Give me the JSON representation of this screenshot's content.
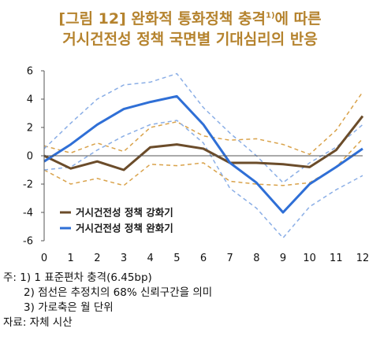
{
  "title": {
    "line1_main": "[그림 12] 완화적 통화정책 충격",
    "line1_sup": "1)",
    "line1_tail": "에 따른",
    "line2": "거시건전성 정책 국면별 기대심리의 반응"
  },
  "notes": {
    "lines": [
      "주: 1) 1 표준편차 충격(6.45bp)",
      "2) 점선은 추정치의 68% 신뢰구간을 의미",
      "3) 가로축은 월 단위"
    ],
    "source": "자료: 자체 시산"
  },
  "chart_data": {
    "type": "line",
    "x": [
      0,
      1,
      2,
      3,
      4,
      5,
      6,
      7,
      8,
      9,
      10,
      11,
      12
    ],
    "ylim": [
      -6,
      6
    ],
    "yticks": [
      -6,
      -4,
      -2,
      0,
      2,
      4,
      6
    ],
    "grid": false,
    "legend_position": "lower-left",
    "series": [
      {
        "name": "거시건전성 정책 강화기",
        "color": "#6b4c2a",
        "values": [
          0.0,
          -0.9,
          -0.4,
          -1.0,
          0.6,
          0.8,
          0.5,
          -0.5,
          -0.5,
          -0.6,
          -0.8,
          0.4,
          2.8
        ],
        "upper": [
          0.7,
          0.2,
          0.9,
          0.3,
          2.0,
          2.4,
          1.4,
          1.1,
          1.2,
          0.8,
          0.1,
          1.8,
          4.5
        ],
        "lower": [
          -1.0,
          -2.0,
          -1.6,
          -2.1,
          -0.6,
          -0.7,
          -0.5,
          -1.8,
          -2.0,
          -2.1,
          -1.9,
          -0.8,
          1.2
        ],
        "band_color": "#d9a24a"
      },
      {
        "name": "거시건전성 정책 완화기",
        "color": "#2f6fd6",
        "values": [
          -0.4,
          0.8,
          2.2,
          3.3,
          3.8,
          4.2,
          2.2,
          -0.5,
          -1.9,
          -4.0,
          -2.0,
          -0.8,
          0.5
        ],
        "upper": [
          0.5,
          2.3,
          4.0,
          5.0,
          5.2,
          5.8,
          3.4,
          1.6,
          0.0,
          -1.9,
          -0.5,
          0.6,
          2.2
        ],
        "lower": [
          -1.0,
          -0.8,
          0.4,
          1.4,
          2.2,
          2.5,
          0.9,
          -2.3,
          -3.7,
          -5.8,
          -3.6,
          -2.4,
          -1.4
        ],
        "band_color": "#8aaee6"
      }
    ]
  }
}
